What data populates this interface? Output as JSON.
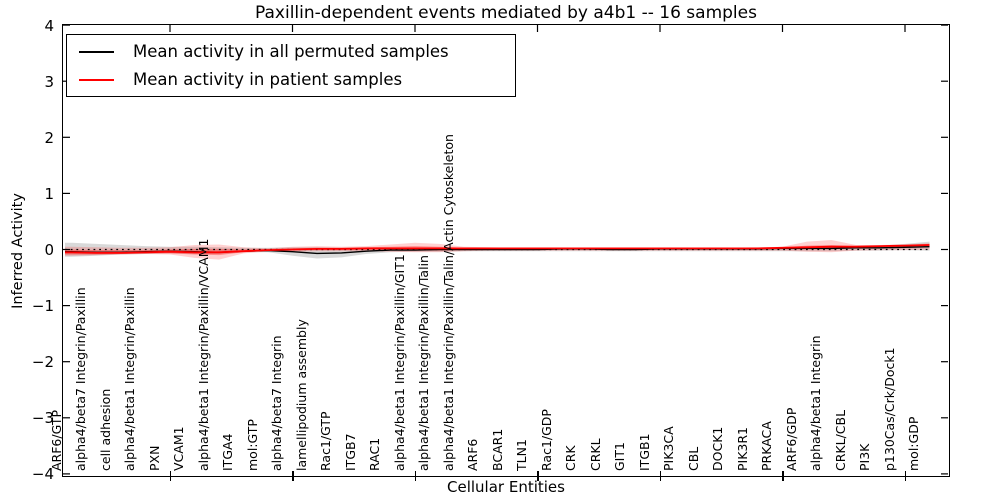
{
  "title": "Paxillin-dependent events mediated by a4b1 -- 16 samples",
  "legend": {
    "items": [
      {
        "label": "Mean activity in all permuted samples",
        "color": "#000000"
      },
      {
        "label": "Mean activity in patient samples",
        "color": "#ff0000"
      }
    ]
  },
  "chart_data": {
    "type": "line",
    "title": "Paxillin-dependent events mediated by a4b1 -- 16 samples",
    "xlabel": "Cellular Entities",
    "ylabel": "Inferred Activity",
    "ylim": [
      -4,
      4
    ],
    "yticks": [
      -4,
      -3,
      -2,
      -1,
      0,
      1,
      2,
      3,
      4
    ],
    "grid": false,
    "zero_line": true,
    "legend_position": "upper left",
    "x_major_tick_indices": [
      4,
      9,
      14,
      19,
      24,
      29,
      34
    ],
    "categories": [
      "ARF6/GTP",
      "alpha4/beta7 Integrin/Paxillin",
      "cell adhesion",
      "alpha4/beta1 Integrin/Paxillin",
      "PXN",
      "VCAM1",
      "alpha4/beta1 Integrin/Paxillin/VCAM1",
      "ITGA4",
      "mol:GTP",
      "alpha4/beta7 Integrin",
      "lamellipodium assembly",
      "Rac1/GTP",
      "ITGB7",
      "RAC1",
      "alpha4/beta1 Integrin/Paxillin/GIT1",
      "alpha4/beta1 Integrin/Paxillin/Talin",
      "alpha4/beta1 Integrin/Paxillin/Talin/Actin Cytoskeleton",
      "ARF6",
      "BCAR1",
      "TLN1",
      "Rac1/GDP",
      "CRK",
      "CRKL",
      "GIT1",
      "ITGB1",
      "PIK3CA",
      "CBL",
      "DOCK1",
      "PIK3R1",
      "PRKACA",
      "ARF6/GDP",
      "alpha4/beta1 Integrin",
      "CRKL/CBL",
      "PI3K",
      "p130Cas/Crk/Dock1",
      "mol:GDP"
    ],
    "series": [
      {
        "name": "Mean activity in all permuted samples",
        "color": "#000000",
        "width": 1.4,
        "values": [
          -0.04,
          -0.05,
          -0.05,
          -0.04,
          -0.03,
          -0.04,
          -0.05,
          -0.03,
          -0.02,
          -0.04,
          -0.07,
          -0.06,
          -0.03,
          -0.01,
          -0.01,
          0,
          0,
          0,
          0,
          0,
          0.01,
          0.01,
          0,
          0,
          0.01,
          0.01,
          0.01,
          0.01,
          0.01,
          0.02,
          0.02,
          0.02,
          0.03,
          0.03,
          0.04,
          0.05
        ]
      },
      {
        "name": "Mean activity in patient samples",
        "color": "#ff0000",
        "width": 1.8,
        "values": [
          -0.05,
          -0.06,
          -0.06,
          -0.05,
          -0.04,
          -0.05,
          -0.05,
          -0.03,
          -0.01,
          0,
          0.01,
          0.01,
          0.02,
          0.02,
          0.02,
          0.02,
          0.02,
          0.02,
          0.02,
          0.02,
          0.02,
          0.02,
          0.02,
          0.02,
          0.02,
          0.02,
          0.02,
          0.02,
          0.02,
          0.03,
          0.04,
          0.05,
          0.05,
          0.06,
          0.07,
          0.08
        ]
      }
    ],
    "bands": [
      {
        "name": "permuted-samples-range",
        "color": "rgba(0,0,0,0.15)",
        "upper": [
          0.12,
          0.1,
          0.08,
          0.06,
          0.05,
          0.05,
          0.04,
          0.03,
          0.03,
          0.04,
          0.04,
          0.03,
          0.03,
          0.03,
          0.03,
          0.03,
          0.02,
          0.02,
          0.02,
          0.02,
          0.03,
          0.03,
          0.03,
          0.03,
          0.03,
          0.03,
          0.03,
          0.03,
          0.03,
          0.03,
          0.04,
          0.04,
          0.05,
          0.07,
          0.1,
          0.14
        ],
        "lower": [
          -0.13,
          -0.11,
          -0.09,
          -0.08,
          -0.07,
          -0.08,
          -0.08,
          -0.05,
          -0.05,
          -0.11,
          -0.16,
          -0.14,
          -0.08,
          -0.05,
          -0.04,
          -0.04,
          -0.03,
          -0.03,
          -0.03,
          -0.03,
          -0.03,
          -0.03,
          -0.03,
          -0.03,
          -0.03,
          -0.03,
          -0.03,
          -0.03,
          -0.03,
          -0.03,
          -0.03,
          -0.03,
          -0.02,
          -0.02,
          -0.01,
          -0.02
        ]
      },
      {
        "name": "patient-samples-range-outer",
        "color": "rgba(255,0,0,0.18)",
        "upper": [
          0.05,
          0.04,
          0.03,
          0.03,
          0.04,
          0.08,
          0.09,
          0.04,
          0.02,
          0.05,
          0.06,
          0.05,
          0.06,
          0.09,
          0.12,
          0.1,
          0.05,
          0.04,
          0.03,
          0.03,
          0.03,
          0.03,
          0.03,
          0.03,
          0.03,
          0.03,
          0.03,
          0.03,
          0.04,
          0.05,
          0.14,
          0.17,
          0.08,
          0.08,
          0.09,
          0.11
        ],
        "lower": [
          -0.11,
          -0.1,
          -0.09,
          -0.08,
          -0.09,
          -0.15,
          -0.18,
          -0.07,
          -0.03,
          -0.04,
          -0.03,
          -0.03,
          -0.03,
          -0.04,
          -0.05,
          -0.05,
          -0.03,
          -0.02,
          -0.02,
          -0.02,
          -0.02,
          -0.02,
          -0.02,
          -0.02,
          -0.02,
          -0.02,
          -0.02,
          -0.02,
          -0.02,
          -0.02,
          -0.04,
          -0.05,
          -0.02,
          -0.01,
          -0.01,
          0
        ]
      },
      {
        "name": "patient-samples-range-inner",
        "color": "rgba(255,0,0,0.33)",
        "upper": [
          0,
          -0.01,
          -0.01,
          -0.01,
          0,
          0.01,
          0.01,
          0,
          0.01,
          0.02,
          0.03,
          0.03,
          0.04,
          0.05,
          0.06,
          0.05,
          0.03,
          0.03,
          0.03,
          0.03,
          0.03,
          0.03,
          0.03,
          0.03,
          0.03,
          0.03,
          0.03,
          0.03,
          0.03,
          0.04,
          0.07,
          0.08,
          0.06,
          0.07,
          0.08,
          0.1
        ],
        "lower": [
          -0.09,
          -0.09,
          -0.08,
          -0.07,
          -0.07,
          -0.09,
          -0.1,
          -0.05,
          -0.02,
          -0.02,
          -0.01,
          -0.01,
          -0.01,
          -0.01,
          -0.02,
          -0.02,
          -0.01,
          0,
          0,
          0,
          0,
          0,
          0,
          0,
          0,
          0,
          0,
          0,
          0,
          0.01,
          0.02,
          0.02,
          0.03,
          0.04,
          0.05,
          0.06
        ]
      }
    ]
  }
}
